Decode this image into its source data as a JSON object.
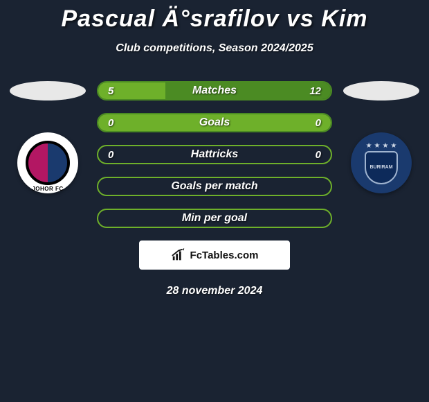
{
  "background_color": "#1a2332",
  "title": "Pascual Ä°srafilov vs Kim",
  "subtitle": "Club competitions, Season 2024/2025",
  "left_team": {
    "badge_label": "JOHOR FC",
    "badge_bg": "#ffffff",
    "badge_gradient_left": "#b31763",
    "badge_gradient_right": "#1a3a6e"
  },
  "right_team": {
    "badge_label": "BURIRAM",
    "badge_bg": "#1a3a6e",
    "shield_color": "#0d2a5a"
  },
  "bars": [
    {
      "label": "Matches",
      "left_value": "5",
      "right_value": "12",
      "left_pct": 29,
      "right_pct": 71,
      "border_color": "#4b8b23",
      "left_fill": "#6eb02a",
      "right_fill": "#4b8b23"
    },
    {
      "label": "Goals",
      "left_value": "0",
      "right_value": "0",
      "left_pct": 50,
      "right_pct": 50,
      "border_color": "#4b8b23",
      "left_fill": "#6eb02a",
      "right_fill": "#6eb02a"
    },
    {
      "label": "Hattricks",
      "left_value": "0",
      "right_value": "0",
      "left_pct": 0,
      "right_pct": 0,
      "border_color": "#6eb02a",
      "left_fill": "transparent",
      "right_fill": "transparent"
    },
    {
      "label": "Goals per match",
      "left_value": "",
      "right_value": "",
      "left_pct": 0,
      "right_pct": 0,
      "border_color": "#6eb02a",
      "left_fill": "transparent",
      "right_fill": "transparent"
    },
    {
      "label": "Min per goal",
      "left_value": "",
      "right_value": "",
      "left_pct": 0,
      "right_pct": 0,
      "border_color": "#6eb02a",
      "left_fill": "transparent",
      "right_fill": "transparent"
    }
  ],
  "footer_brand": "FcTables.com",
  "date": "28 november 2024"
}
